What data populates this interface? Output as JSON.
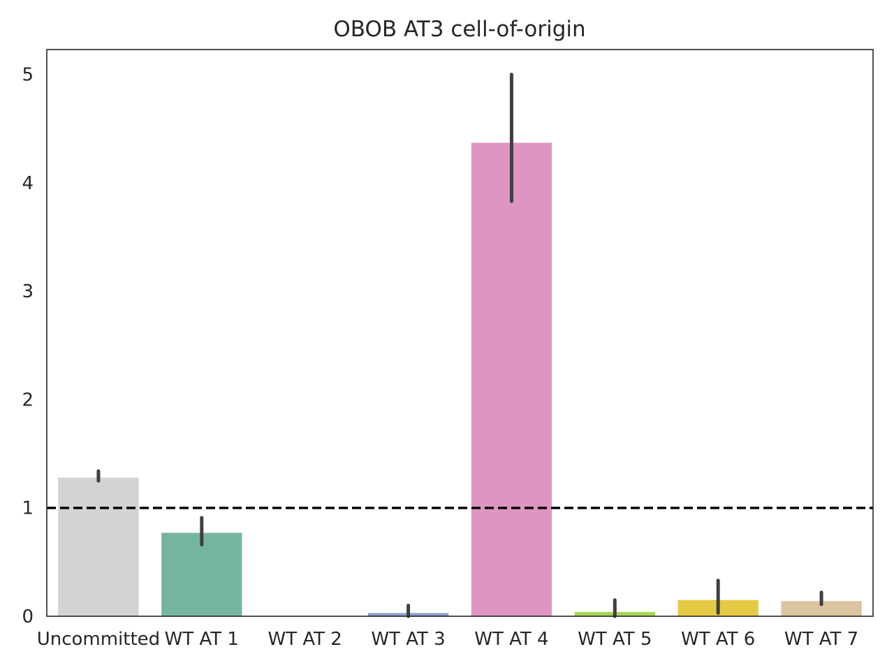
{
  "chart_data": {
    "type": "bar",
    "title": "OBOB AT3 cell-of-origin",
    "xlabel": "",
    "ylabel": "",
    "categories": [
      "Uncommitted",
      "WT AT 1",
      "WT AT 2",
      "WT AT 3",
      "WT AT 4",
      "WT AT 5",
      "WT AT 6",
      "WT AT 7"
    ],
    "values": [
      1.28,
      0.77,
      0.0,
      0.03,
      4.37,
      0.04,
      0.15,
      0.14
    ],
    "error_low": [
      1.25,
      0.66,
      0.0,
      0.0,
      3.83,
      0.0,
      0.03,
      0.11
    ],
    "error_high": [
      1.34,
      0.91,
      0.0,
      0.1,
      5.0,
      0.15,
      0.33,
      0.22
    ],
    "colors": [
      "#d3d3d3",
      "#75b5a0",
      "#f4a58a",
      "#8da0cb",
      "#dd96c2",
      "#a6d854",
      "#e5cb45",
      "#dbc49e"
    ],
    "ylim": [
      0,
      5.23
    ],
    "yticks": [
      "0",
      "1",
      "2",
      "3",
      "4",
      "5"
    ],
    "reference_line": {
      "y": 1,
      "style": "dashed",
      "color": "#000000"
    },
    "errorbar_color": "#404040",
    "grid": false
  }
}
